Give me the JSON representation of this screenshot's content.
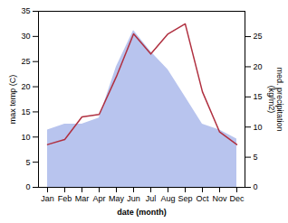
{
  "chart_data": {
    "type": "line",
    "xlabel": "date (month)",
    "ylabel": "max temp (C)",
    "y2label": "med. precipitation\n(kg/m2)",
    "categories": [
      "Jan",
      "Feb",
      "Mar",
      "Apr",
      "May",
      "Jun",
      "Jul",
      "Aug",
      "Sep",
      "Oct",
      "Nov",
      "Dec"
    ],
    "series": [
      {
        "type": "area",
        "axis": "y2",
        "color": "#b8c4ee",
        "values": [
          9.5,
          10.5,
          10.5,
          11.5,
          20.0,
          26.0,
          22.5,
          19.5,
          15.0,
          10.5,
          9.5,
          8.0
        ]
      },
      {
        "type": "line",
        "color": "#b03040",
        "values": [
          8.5,
          9.5,
          14.0,
          14.5,
          22.0,
          30.5,
          26.5,
          30.5,
          32.5,
          19.0,
          11.0,
          8.5
        ]
      }
    ],
    "ylim": [
      0,
      35
    ],
    "yticks": [
      0,
      5,
      10,
      15,
      20,
      25,
      30,
      35
    ],
    "y2lim": [
      0,
      29.2
    ],
    "y2ticks": [
      0,
      5,
      10,
      15,
      20,
      25
    ],
    "grid": false
  }
}
